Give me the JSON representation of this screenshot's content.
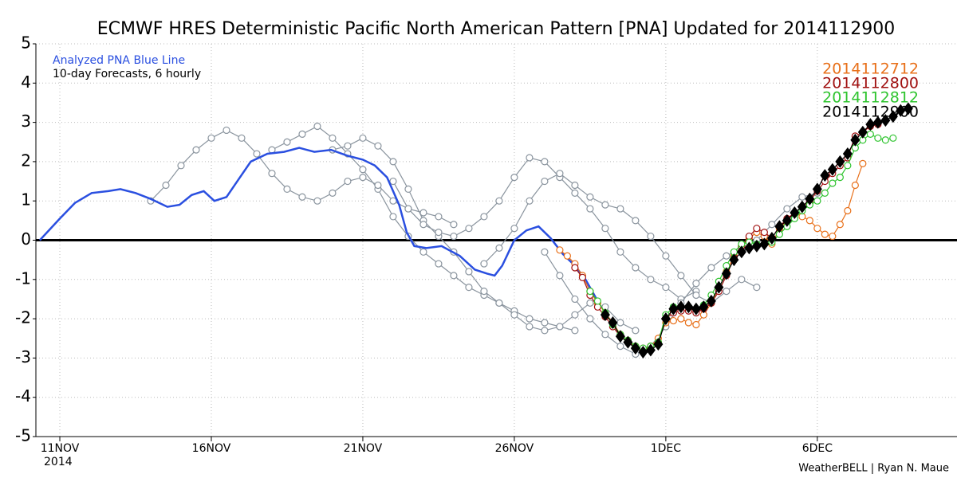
{
  "chart_data": {
    "type": "line",
    "title": "ECMWF HRES Deterministic Pacific North American Pattern [PNA] Updated for 2014112900",
    "subtitle": "10-day Forecasts, 6 hourly",
    "x_year_label": "2014",
    "credit": "WeatherBELL | Ryan N. Maue",
    "xlim": [
      -0.79,
      29.61
    ],
    "ylim": [
      -5,
      5
    ],
    "xticks": [
      {
        "value": 0,
        "label": "11NOV"
      },
      {
        "value": 5,
        "label": "16NOV"
      },
      {
        "value": 10,
        "label": "21NOV"
      },
      {
        "value": 15,
        "label": "26NOV"
      },
      {
        "value": 20,
        "label": "1DEC"
      },
      {
        "value": 25,
        "label": "6DEC"
      }
    ],
    "yticks": [
      -5,
      -4,
      -3,
      -2,
      -1,
      0,
      1,
      2,
      3,
      4,
      5
    ],
    "grid": true,
    "series": [
      {
        "color": "#8a949e",
        "marker": "circle",
        "x": [
          7,
          7.5,
          8,
          8.5,
          9,
          9.5,
          10,
          10.5,
          11,
          11.5,
          12,
          12.5,
          13,
          13.5,
          14,
          14.5,
          15,
          15.5,
          16,
          16.5,
          17
        ],
        "values": [
          2.3,
          2.5,
          2.7,
          2.9,
          2.6,
          2.2,
          1.8,
          1.3,
          0.6,
          0.1,
          -0.3,
          -0.6,
          -0.9,
          -1.2,
          -1.4,
          -1.6,
          -1.8,
          -2.0,
          -2.1,
          -2.2,
          -2.3
        ]
      },
      {
        "color": "#8a949e",
        "marker": "circle",
        "x": [
          9,
          9.5,
          10,
          10.5,
          11,
          11.5,
          12,
          12.5,
          13,
          13.5,
          14,
          14.5,
          15,
          15.5,
          16,
          16.5,
          17,
          17.5,
          18,
          18.5,
          19
        ],
        "values": [
          2.3,
          2.4,
          2.6,
          2.4,
          2.0,
          1.3,
          0.5,
          0.1,
          -0.3,
          -0.8,
          -1.3,
          -1.6,
          -1.9,
          -2.2,
          -2.3,
          -2.2,
          -1.9,
          -1.6,
          -1.7,
          -2.1,
          -2.3
        ]
      },
      {
        "color": "#8a949e",
        "marker": "circle",
        "x": [
          11,
          11.5,
          12,
          12.5,
          13,
          13.5,
          14,
          14.5,
          15,
          15.5,
          16,
          16.5,
          17,
          17.5,
          18,
          18.5,
          19,
          19.5,
          20,
          20.5,
          21
        ],
        "values": [
          1.5,
          0.8,
          0.4,
          0.2,
          0.1,
          0.3,
          0.6,
          1.0,
          1.6,
          2.1,
          2.0,
          1.6,
          1.2,
          0.8,
          0.3,
          -0.3,
          -0.7,
          -1.0,
          -1.2,
          -1.5,
          -1.3
        ]
      },
      {
        "color": "#8a949e",
        "marker": "circle",
        "x": [
          14,
          14.5,
          15,
          15.5,
          16,
          16.5,
          17,
          17.5,
          18,
          18.5,
          19,
          19.5,
          20,
          20.5,
          21,
          21.5,
          22,
          22.5,
          23
        ],
        "values": [
          -0.6,
          -0.2,
          0.3,
          1.0,
          1.5,
          1.7,
          1.4,
          1.1,
          0.9,
          0.8,
          0.5,
          0.1,
          -0.4,
          -0.9,
          -1.4,
          -1.6,
          -1.3,
          -1.0,
          -1.2
        ]
      },
      {
        "color": "#8a949e",
        "marker": "circle",
        "x": [
          3,
          3.5,
          4,
          4.5,
          5,
          5.5,
          6,
          6.5,
          7,
          7.5,
          8,
          8.5,
          9,
          9.5,
          10,
          10.5,
          11,
          11.5,
          12,
          12.5,
          13
        ],
        "values": [
          1.0,
          1.4,
          1.9,
          2.3,
          2.6,
          2.8,
          2.6,
          2.2,
          1.7,
          1.3,
          1.1,
          1.0,
          1.2,
          1.5,
          1.6,
          1.4,
          1.0,
          0.8,
          0.7,
          0.6,
          0.4
        ]
      },
      {
        "color": "#8a949e",
        "marker": "circle",
        "x": [
          16,
          16.5,
          17,
          17.5,
          18,
          18.5,
          19,
          19.5,
          20,
          20.5,
          21,
          21.5,
          22,
          22.5,
          23,
          23.5,
          24,
          24.5,
          25
        ],
        "values": [
          -0.3,
          -0.9,
          -1.5,
          -2.0,
          -2.4,
          -2.7,
          -2.9,
          -2.7,
          -2.2,
          -1.6,
          -1.1,
          -0.7,
          -0.4,
          -0.2,
          0.0,
          0.4,
          0.8,
          1.1,
          1.2
        ]
      },
      {
        "name": "Analyzed PNA Blue Line",
        "color": "#2a4fe0",
        "marker": "none",
        "x": [
          -0.66,
          0,
          0.5,
          1.05,
          1.6,
          2,
          2.5,
          3,
          3.55,
          3.95,
          4.35,
          4.75,
          5.1,
          5.5,
          5.9,
          6.3,
          6.85,
          7.4,
          7.9,
          8.4,
          8.95,
          9.5,
          10,
          10.4,
          10.8,
          11.2,
          11.45,
          11.7,
          12.1,
          12.6,
          13.2,
          13.7,
          14.1,
          14.35,
          14.6,
          15,
          15.4,
          15.8,
          16.2,
          16.6,
          17,
          17.35,
          17.75
        ],
        "values": [
          0,
          0.55,
          0.95,
          1.2,
          1.25,
          1.3,
          1.2,
          1.05,
          0.85,
          0.9,
          1.15,
          1.25,
          1.0,
          1.1,
          1.55,
          2.0,
          2.2,
          2.25,
          2.35,
          2.25,
          2.3,
          2.15,
          2.05,
          1.9,
          1.6,
          0.9,
          0.2,
          -0.15,
          -0.2,
          -0.15,
          -0.4,
          -0.75,
          -0.85,
          -0.9,
          -0.65,
          0,
          0.25,
          0.35,
          0.05,
          -0.35,
          -0.65,
          -1.0,
          -1.55
        ]
      },
      {
        "name": "2014112712",
        "color": "#e8701a",
        "marker": "circle",
        "x": [
          16.5,
          16.75,
          17,
          17.25,
          17.5,
          17.75,
          18,
          18.25,
          18.5,
          18.75,
          19,
          19.25,
          19.5,
          19.75,
          20,
          20.25,
          20.5,
          20.75,
          21,
          21.25,
          21.5,
          21.75,
          22,
          22.25,
          22.5,
          22.75,
          23,
          23.25,
          23.5,
          23.75,
          24,
          24.25,
          24.5,
          24.75,
          25,
          25.25,
          25.5,
          25.75,
          26,
          26.25,
          26.5
        ],
        "values": [
          -0.25,
          -0.4,
          -0.6,
          -0.9,
          -1.3,
          -1.6,
          -1.85,
          -2.1,
          -2.4,
          -2.55,
          -2.7,
          -2.8,
          -2.7,
          -2.5,
          -2.1,
          -2.05,
          -2.0,
          -2.1,
          -2.15,
          -1.9,
          -1.6,
          -1.2,
          -0.8,
          -0.4,
          -0.15,
          0.05,
          0.2,
          0.1,
          -0.1,
          0.3,
          0.5,
          0.7,
          0.6,
          0.5,
          0.3,
          0.15,
          0.1,
          0.4,
          0.75,
          1.4,
          1.95
        ]
      },
      {
        "name": "2014112800",
        "color": "#a01010",
        "marker": "circle",
        "x": [
          17,
          17.25,
          17.5,
          17.75,
          18,
          18.25,
          18.5,
          18.75,
          19,
          19.25,
          19.5,
          19.75,
          20,
          20.25,
          20.5,
          20.75,
          21,
          21.25,
          21.5,
          21.75,
          22,
          22.25,
          22.5,
          22.75,
          23,
          23.25,
          23.5,
          23.75,
          24,
          24.25,
          24.5,
          24.75,
          25,
          25.25,
          25.5,
          25.75,
          26,
          26.25,
          26.5,
          26.75,
          27
        ],
        "values": [
          -0.7,
          -0.95,
          -1.4,
          -1.7,
          -1.95,
          -2.2,
          -2.45,
          -2.6,
          -2.7,
          -2.75,
          -2.7,
          -2.6,
          -2.0,
          -1.85,
          -1.8,
          -1.8,
          -1.85,
          -1.75,
          -1.6,
          -1.3,
          -0.9,
          -0.45,
          -0.15,
          0.1,
          0.3,
          0.2,
          0.05,
          0.35,
          0.55,
          0.7,
          0.85,
          1.0,
          1.25,
          1.5,
          1.7,
          1.9,
          2.1,
          2.65,
          2.75,
          2.9,
          2.95
        ]
      },
      {
        "name": "2014112812",
        "color": "#2ec42e",
        "marker": "circle",
        "x": [
          17.5,
          17.75,
          18,
          18.25,
          18.5,
          18.75,
          19,
          19.25,
          19.5,
          19.75,
          20,
          20.25,
          20.5,
          20.75,
          21,
          21.25,
          21.5,
          21.75,
          22,
          22.25,
          22.5,
          22.75,
          23,
          23.25,
          23.5,
          23.75,
          24,
          24.25,
          24.5,
          24.75,
          25,
          25.25,
          25.5,
          25.75,
          26,
          26.25,
          26.5,
          26.75,
          27,
          27.25,
          27.5
        ],
        "values": [
          -1.3,
          -1.55,
          -1.85,
          -2.15,
          -2.4,
          -2.55,
          -2.7,
          -2.75,
          -2.7,
          -2.6,
          -1.9,
          -1.7,
          -1.7,
          -1.7,
          -1.75,
          -1.65,
          -1.4,
          -1.05,
          -0.65,
          -0.3,
          -0.1,
          -0.05,
          -0.1,
          -0.1,
          -0.05,
          0.15,
          0.35,
          0.55,
          0.75,
          0.9,
          1.0,
          1.2,
          1.45,
          1.6,
          1.9,
          2.35,
          2.55,
          2.7,
          2.6,
          2.55,
          2.6
        ]
      },
      {
        "name": "2014112900",
        "color": "#000000",
        "marker": "diamond",
        "x": [
          18,
          18.25,
          18.5,
          18.75,
          19,
          19.25,
          19.5,
          19.75,
          20,
          20.25,
          20.5,
          20.75,
          21,
          21.25,
          21.5,
          21.75,
          22,
          22.25,
          22.5,
          22.75,
          23,
          23.25,
          23.5,
          23.75,
          24,
          24.25,
          24.5,
          24.75,
          25,
          25.25,
          25.5,
          25.75,
          26,
          26.25,
          26.5,
          26.75,
          27,
          27.25,
          27.5,
          27.75,
          28
        ],
        "values": [
          -1.9,
          -2.1,
          -2.45,
          -2.6,
          -2.75,
          -2.85,
          -2.8,
          -2.65,
          -2.0,
          -1.75,
          -1.7,
          -1.7,
          -1.75,
          -1.7,
          -1.55,
          -1.2,
          -0.85,
          -0.5,
          -0.3,
          -0.2,
          -0.15,
          -0.1,
          0.05,
          0.35,
          0.5,
          0.7,
          0.85,
          1.05,
          1.3,
          1.65,
          1.8,
          2.0,
          2.2,
          2.55,
          2.75,
          2.95,
          3.0,
          3.05,
          3.15,
          3.3,
          3.35
        ]
      }
    ]
  }
}
